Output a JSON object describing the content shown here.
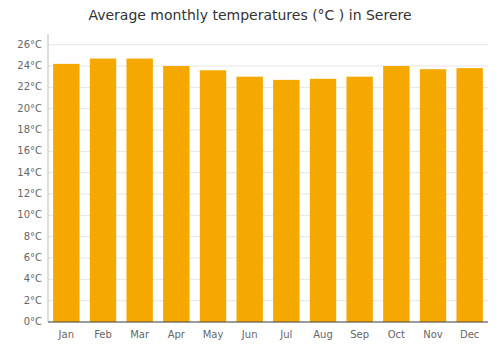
{
  "chart_data": {
    "type": "bar",
    "title": "Average monthly temperatures (°C ) in Serere",
    "categories": [
      "Jan",
      "Feb",
      "Mar",
      "Apr",
      "May",
      "Jun",
      "Jul",
      "Aug",
      "Sep",
      "Oct",
      "Nov",
      "Dec"
    ],
    "values": [
      24.2,
      24.7,
      24.7,
      24.0,
      23.6,
      23.0,
      22.7,
      22.8,
      23.0,
      24.0,
      23.7,
      23.8
    ],
    "color": "#F5A800",
    "ylim": [
      0,
      27
    ],
    "yticks": [
      {
        "value": 0,
        "label": "0°C"
      },
      {
        "value": 2,
        "label": "2°C"
      },
      {
        "value": 4,
        "label": "4°C"
      },
      {
        "value": 6,
        "label": "6°C"
      },
      {
        "value": 8,
        "label": "8°C"
      },
      {
        "value": 10,
        "label": "10°C"
      },
      {
        "value": 12,
        "label": "12°C"
      },
      {
        "value": 14,
        "label": "14°C"
      },
      {
        "value": 16,
        "label": "16°C"
      },
      {
        "value": 18,
        "label": "18°C"
      },
      {
        "value": 20,
        "label": "20°C"
      },
      {
        "value": 22,
        "label": "22°C"
      },
      {
        "value": 24,
        "label": "24°C"
      },
      {
        "value": 26,
        "label": "26°C"
      }
    ],
    "grid": true
  }
}
